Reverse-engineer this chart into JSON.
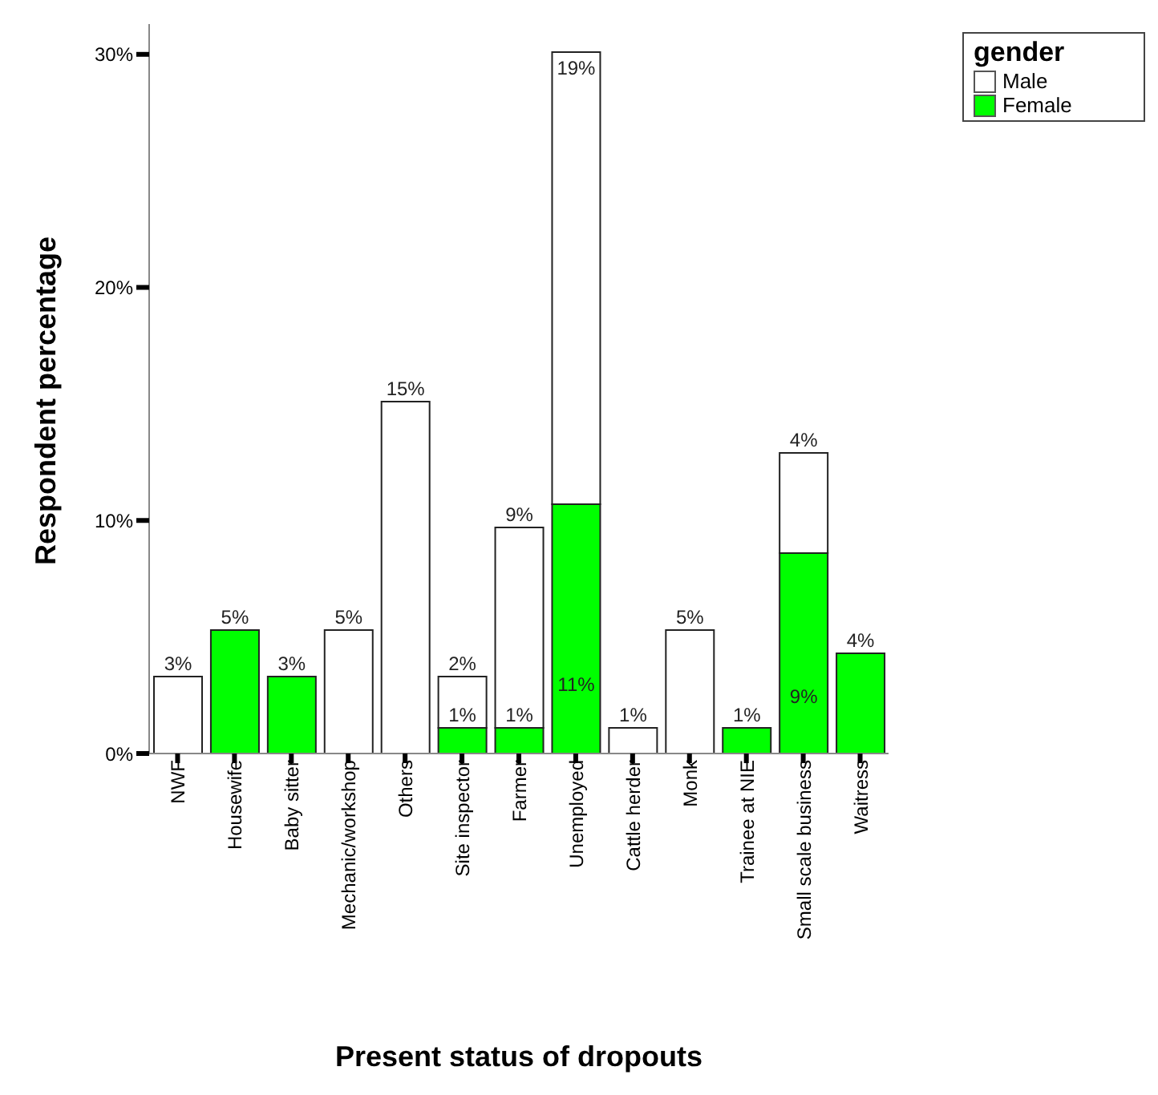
{
  "chart_data": {
    "type": "bar",
    "stacked": true,
    "xlabel": "Present status of dropouts",
    "ylabel": "Respondent percentage",
    "legend_title": "gender",
    "legend": "top right",
    "categories": [
      "NWF",
      "Housewife",
      "Baby sitter",
      "Mechanic/workshop",
      "Others",
      "Site inspector",
      "Farmer",
      "Unemployed",
      "Cattle herder",
      "Monk",
      "Trainee at NIE",
      "Small scale business",
      "Waitress"
    ],
    "ylim": [
      0,
      31.3
    ],
    "yticks": [
      {
        "value": 0,
        "label": "0%"
      },
      {
        "value": 10,
        "label": "10%"
      },
      {
        "value": 20,
        "label": "20%"
      },
      {
        "value": 30,
        "label": "30%"
      }
    ],
    "series": [
      {
        "name": "Female",
        "color": "#00ff00",
        "values": [
          null,
          5.3,
          3.3,
          null,
          null,
          1.1,
          1.1,
          10.7,
          null,
          null,
          1.1,
          8.6,
          4.3
        ],
        "value_labels": [
          null,
          "5%",
          "3%",
          null,
          null,
          "1%",
          "1%",
          "11%",
          null,
          null,
          "1%",
          "9%",
          "4%"
        ]
      },
      {
        "name": "Male",
        "color": "#ffffff",
        "values": [
          3.3,
          null,
          null,
          5.3,
          15.1,
          2.2,
          8.6,
          19.4,
          1.1,
          5.3,
          null,
          4.3,
          null
        ],
        "value_labels": [
          "3%",
          null,
          null,
          "5%",
          "15%",
          "2%",
          "9%",
          "19%",
          "1%",
          "5%",
          null,
          "4%",
          null
        ]
      }
    ]
  }
}
